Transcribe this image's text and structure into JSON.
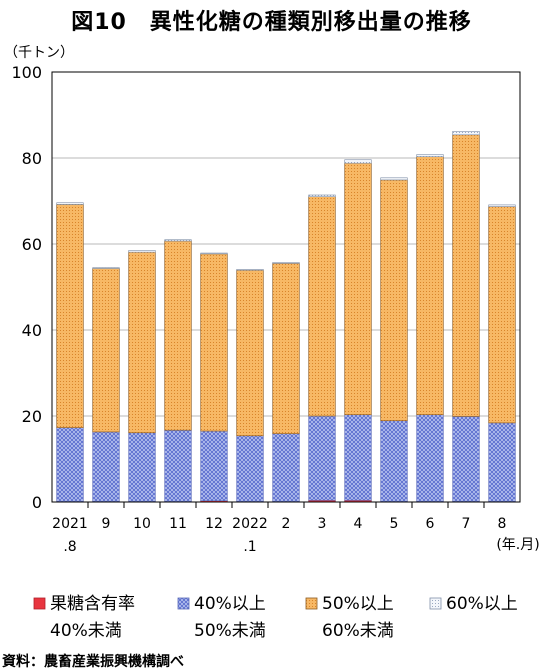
{
  "title": "図10　異性化糖の種類別移出量の推移",
  "source": "資料：農畜産業振興機構調べ",
  "chart_data": {
    "type": "bar",
    "stacked": true,
    "ylabel": "（千トン）",
    "xunit": "(年.月)",
    "ylim": [
      0,
      100
    ],
    "yticks": [
      0,
      20,
      40,
      60,
      80,
      100
    ],
    "grid": true,
    "legend_position": "bottom",
    "categories": [
      {
        "top": "2021",
        "bottom": ".8"
      },
      {
        "top": "9",
        "bottom": ""
      },
      {
        "top": "10",
        "bottom": ""
      },
      {
        "top": "11",
        "bottom": ""
      },
      {
        "top": "12",
        "bottom": ""
      },
      {
        "top": "2022",
        "bottom": ".1"
      },
      {
        "top": "2",
        "bottom": ""
      },
      {
        "top": "3",
        "bottom": ""
      },
      {
        "top": "4",
        "bottom": ""
      },
      {
        "top": "5",
        "bottom": ""
      },
      {
        "top": "6",
        "bottom": ""
      },
      {
        "top": "7",
        "bottom": ""
      },
      {
        "top": "8",
        "bottom": ""
      }
    ],
    "series": [
      {
        "name": "果糖含有率 40%未満",
        "line1": "果糖含有率",
        "line2": "40%未満",
        "color": "#e8353f",
        "pattern": "solid",
        "values": [
          0.1,
          0.1,
          0.1,
          0.1,
          0.3,
          0.1,
          0.1,
          0.4,
          0.4,
          0.1,
          0.1,
          0.1,
          0.1
        ]
      },
      {
        "name": "40%以上 50%未満",
        "line1": "40%以上",
        "line2": "50%未満",
        "color": "#8aa0e0",
        "pattern": "hatch",
        "values": [
          17.2,
          16.2,
          16.0,
          16.6,
          16.2,
          15.3,
          15.8,
          19.6,
          19.9,
          18.8,
          20.2,
          19.8,
          18.3
        ]
      },
      {
        "name": "50%以上 60%未満",
        "line1": "50%以上",
        "line2": "60%未満",
        "color": "#f5b15a",
        "pattern": "dots",
        "values": [
          51.9,
          38.0,
          42.0,
          44.0,
          41.2,
          38.5,
          39.6,
          51.0,
          58.5,
          56.0,
          60.0,
          65.5,
          50.3
        ]
      },
      {
        "name": "60%以上",
        "line1": "60%以上",
        "line2": "",
        "color": "#e8eef8",
        "pattern": "light",
        "values": [
          0.4,
          0.2,
          0.4,
          0.3,
          0.2,
          0.2,
          0.2,
          0.4,
          0.8,
          0.5,
          0.5,
          0.8,
          0.4
        ]
      }
    ]
  }
}
